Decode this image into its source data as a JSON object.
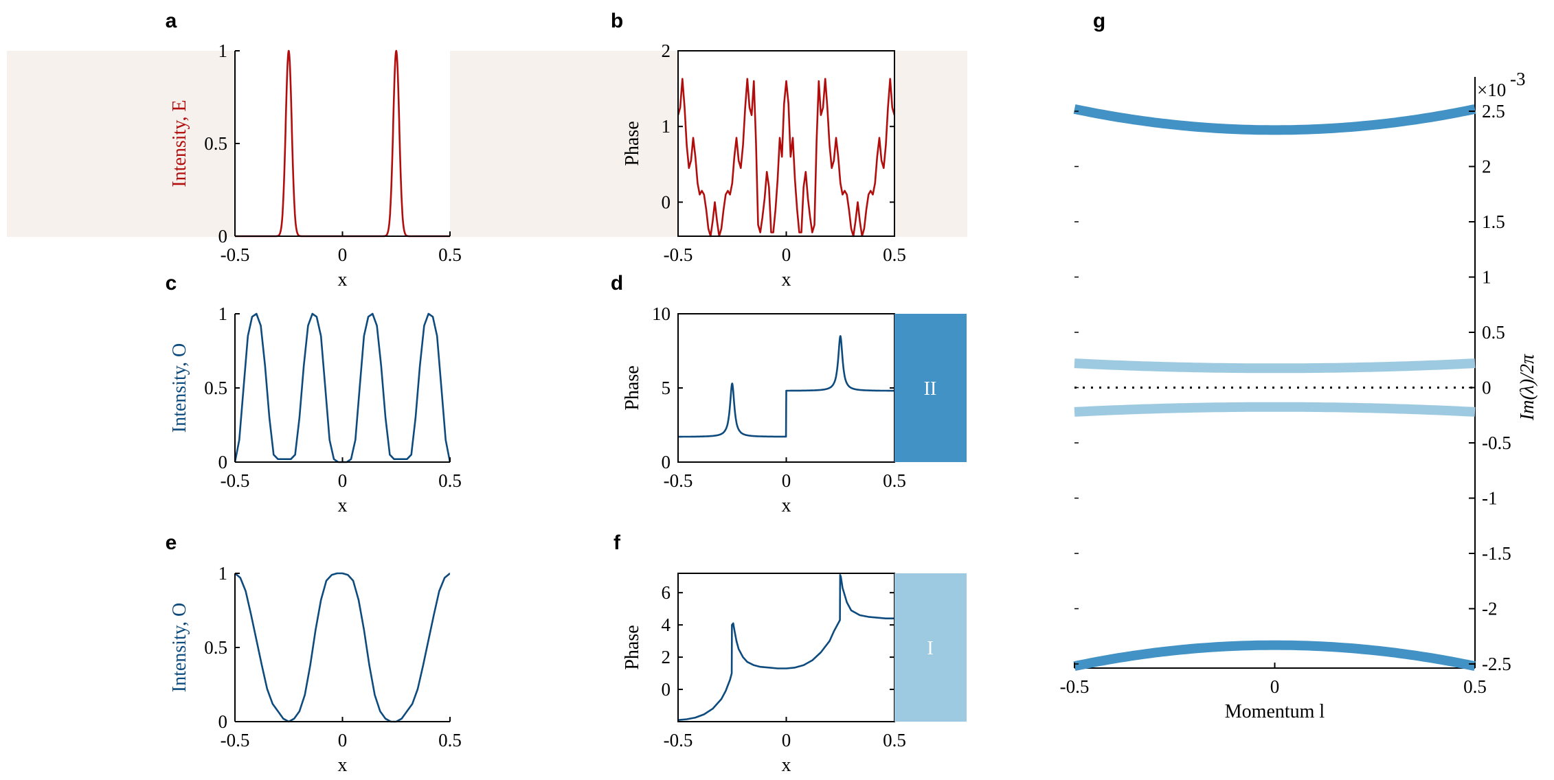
{
  "colors": {
    "red": "#b20d0d",
    "navy": "#0d4a7d",
    "blue": "#4292c6",
    "lightblue": "#9ecae1",
    "beige": "#f6f1ec",
    "black": "#000000"
  },
  "chart_data": [
    {
      "id": "a",
      "panel_label": "a",
      "type": "line",
      "xlabel": "x",
      "ylabel": "Intensity, E",
      "xlim": [
        -0.5,
        0.5
      ],
      "ylim": [
        0,
        1
      ],
      "xticks": [
        -0.5,
        0,
        0.5
      ],
      "xtick_labels": [
        "-0.5",
        "0",
        "0.5"
      ],
      "yticks": [
        0,
        0.5,
        1
      ],
      "ytick_labels": [
        "0",
        "0.5",
        "1"
      ],
      "series": [
        {
          "name": "E intensity",
          "kind": "gauss",
          "centers": [
            -0.25,
            0.25
          ],
          "width": 0.014,
          "amp": 1
        }
      ],
      "background_band": true
    },
    {
      "id": "b",
      "panel_label": "b",
      "type": "line",
      "xlabel": "x",
      "ylabel": "Phase",
      "xlim": [
        -0.5,
        0.5
      ],
      "ylim": [
        -0.45,
        2
      ],
      "xticks": [
        -0.5,
        0,
        0.5
      ],
      "xtick_labels": [
        "-0.5",
        "0",
        "0.5"
      ],
      "yticks": [
        0,
        1,
        2
      ],
      "ytick_labels": [
        "0",
        "1",
        "2"
      ],
      "series": [
        {
          "name": "E phase",
          "kind": "points",
          "x": [
            -0.5,
            -0.49,
            -0.48,
            -0.47,
            -0.46,
            -0.45,
            -0.44,
            -0.43,
            -0.42,
            -0.41,
            -0.4,
            -0.39,
            -0.38,
            -0.37,
            -0.36,
            -0.35,
            -0.34,
            -0.33,
            -0.32,
            -0.31,
            -0.3,
            -0.29,
            -0.28,
            -0.27,
            -0.26,
            -0.25,
            -0.24,
            -0.23,
            -0.22,
            -0.21,
            -0.2,
            -0.19,
            -0.18,
            -0.17,
            -0.16,
            -0.15,
            -0.14,
            -0.13,
            -0.12,
            -0.11,
            -0.1,
            -0.09,
            -0.08,
            -0.07,
            -0.06,
            -0.05,
            -0.04,
            -0.03,
            -0.02,
            -0.01,
            0,
            0.01,
            0.02,
            0.03,
            0.04,
            0.05,
            0.06,
            0.07,
            0.08,
            0.09,
            0.1,
            0.11,
            0.12,
            0.13,
            0.14,
            0.15,
            0.16,
            0.17,
            0.18,
            0.19,
            0.2,
            0.21,
            0.22,
            0.23,
            0.24,
            0.25,
            0.26,
            0.27,
            0.28,
            0.29,
            0.3,
            0.31,
            0.32,
            0.33,
            0.34,
            0.35,
            0.36,
            0.37,
            0.38,
            0.39,
            0.4,
            0.41,
            0.42,
            0.43,
            0.44,
            0.45,
            0.46,
            0.47,
            0.48,
            0.49,
            0.5
          ],
          "y": [
            1.15,
            1.25,
            1.63,
            1.25,
            0.75,
            0.45,
            0.55,
            0.85,
            0.6,
            0.25,
            0.1,
            0.15,
            0.1,
            -0.1,
            -0.35,
            -0.45,
            -0.25,
            0.0,
            -0.25,
            -0.45,
            -0.35,
            -0.1,
            0.1,
            0.15,
            0.1,
            0.25,
            0.6,
            0.85,
            0.55,
            0.45,
            0.75,
            1.25,
            1.63,
            1.25,
            1.15,
            1.6,
            0.8,
            -0.3,
            -0.4,
            -0.2,
            0.05,
            0.4,
            0.2,
            -0.4,
            -0.4,
            -0.1,
            0.3,
            0.85,
            0.6,
            1.3,
            1.6,
            1.3,
            0.6,
            0.85,
            0.3,
            -0.1,
            -0.4,
            -0.4,
            0.2,
            0.4,
            0.05,
            -0.2,
            -0.4,
            -0.3,
            0.8,
            1.6,
            1.15,
            1.25,
            1.63,
            1.25,
            0.75,
            0.45,
            0.55,
            0.85,
            0.6,
            0.25,
            0.1,
            0.15,
            0.1,
            -0.1,
            -0.35,
            -0.45,
            -0.25,
            0.0,
            -0.25,
            -0.45,
            -0.35,
            -0.1,
            0.1,
            0.15,
            0.1,
            0.25,
            0.6,
            0.85,
            0.55,
            0.45,
            0.75,
            1.25,
            1.63,
            1.25,
            1.15
          ]
        }
      ],
      "background_band": true
    },
    {
      "id": "c",
      "panel_label": "c",
      "type": "line",
      "xlabel": "x",
      "ylabel": "Intensity, O",
      "xlim": [
        -0.5,
        0.5
      ],
      "ylim": [
        0,
        1
      ],
      "xticks": [
        -0.5,
        0,
        0.5
      ],
      "xtick_labels": [
        "-0.5",
        "0",
        "0.5"
      ],
      "yticks": [
        0,
        0.5,
        1
      ],
      "ytick_labels": [
        "0",
        "0.5",
        "1"
      ],
      "series": [
        {
          "name": "O intensity",
          "kind": "points",
          "x": [
            -0.5,
            -0.48,
            -0.46,
            -0.44,
            -0.42,
            -0.4,
            -0.38,
            -0.36,
            -0.34,
            -0.32,
            -0.3,
            -0.28,
            -0.26,
            -0.24,
            -0.22,
            -0.2,
            -0.18,
            -0.16,
            -0.14,
            -0.12,
            -0.1,
            -0.08,
            -0.06,
            -0.04,
            -0.02,
            0,
            0.02,
            0.04,
            0.06,
            0.08,
            0.1,
            0.12,
            0.14,
            0.16,
            0.18,
            0.2,
            0.22,
            0.24,
            0.26,
            0.28,
            0.3,
            0.32,
            0.34,
            0.36,
            0.38,
            0.4,
            0.42,
            0.44,
            0.46,
            0.48,
            0.5
          ],
          "y": [
            0.0,
            0.15,
            0.5,
            0.85,
            0.98,
            1.0,
            0.92,
            0.65,
            0.3,
            0.05,
            0.02,
            0.02,
            0.02,
            0.02,
            0.05,
            0.3,
            0.65,
            0.92,
            1.0,
            0.98,
            0.85,
            0.5,
            0.15,
            0.02,
            0.0,
            0.0,
            0.0,
            0.02,
            0.15,
            0.5,
            0.85,
            0.98,
            1.0,
            0.92,
            0.65,
            0.3,
            0.05,
            0.02,
            0.02,
            0.02,
            0.02,
            0.05,
            0.3,
            0.65,
            0.92,
            1.0,
            0.98,
            0.85,
            0.5,
            0.15,
            0.0
          ]
        }
      ],
      "background_band": false
    },
    {
      "id": "d",
      "panel_label": "d",
      "type": "line",
      "xlabel": "x",
      "ylabel": "Phase",
      "xlim": [
        -0.5,
        0.5
      ],
      "ylim": [
        0,
        10
      ],
      "xticks": [
        -0.5,
        0,
        0.5
      ],
      "xtick_labels": [
        "-0.5",
        "0",
        "0.5"
      ],
      "yticks": [
        0,
        5,
        10
      ],
      "ytick_labels": [
        "0",
        "5",
        "10"
      ],
      "series": [
        {
          "name": "O phase",
          "kind": "piecewise_peak",
          "segments": [
            {
              "x0": -0.5,
              "x1": 0.0,
              "base0": 1.7,
              "base1": 1.7
            },
            {
              "x0": 0.0,
              "x1": 0.5,
              "base0": 4.8,
              "base1": 4.8
            }
          ],
          "peaks": [
            {
              "c": -0.25,
              "h": 3.6,
              "w": 0.012
            },
            {
              "c": 0.25,
              "h": 3.7,
              "w": 0.012
            }
          ]
        }
      ],
      "side_block": {
        "label": "II",
        "color_key": "blue"
      }
    },
    {
      "id": "e",
      "panel_label": "e",
      "type": "line",
      "xlabel": "x",
      "ylabel": "Intensity, O",
      "xlim": [
        -0.5,
        0.5
      ],
      "ylim": [
        0,
        1
      ],
      "xticks": [
        -0.5,
        0,
        0.5
      ],
      "xtick_labels": [
        "-0.5",
        "0",
        "0.5"
      ],
      "yticks": [
        0,
        0.5,
        1
      ],
      "ytick_labels": [
        "0",
        "0.5",
        "1"
      ],
      "series": [
        {
          "name": "O intensity",
          "kind": "points",
          "x": [
            -0.5,
            -0.475,
            -0.45,
            -0.425,
            -0.4,
            -0.375,
            -0.35,
            -0.325,
            -0.3,
            -0.275,
            -0.25,
            -0.225,
            -0.2,
            -0.175,
            -0.15,
            -0.125,
            -0.1,
            -0.075,
            -0.05,
            -0.025,
            0,
            0.025,
            0.05,
            0.075,
            0.1,
            0.125,
            0.15,
            0.175,
            0.2,
            0.225,
            0.25,
            0.275,
            0.3,
            0.325,
            0.35,
            0.375,
            0.4,
            0.425,
            0.45,
            0.475,
            0.5
          ],
          "y": [
            1.0,
            0.97,
            0.88,
            0.72,
            0.55,
            0.38,
            0.22,
            0.12,
            0.07,
            0.02,
            0.0,
            0.02,
            0.07,
            0.18,
            0.38,
            0.62,
            0.82,
            0.95,
            0.99,
            1.0,
            1.0,
            0.99,
            0.95,
            0.82,
            0.62,
            0.38,
            0.18,
            0.07,
            0.02,
            0.0,
            0.0,
            0.02,
            0.07,
            0.12,
            0.22,
            0.38,
            0.55,
            0.72,
            0.88,
            0.97,
            1.0
          ]
        }
      ],
      "background_band": false
    },
    {
      "id": "f",
      "panel_label": "f",
      "type": "line",
      "xlabel": "x",
      "ylabel": "Phase",
      "xlim": [
        -0.5,
        0.5
      ],
      "ylim": [
        -2,
        7.2
      ],
      "xticks": [
        -0.5,
        0,
        0.5
      ],
      "xtick_labels": [
        "-0.5",
        "0",
        "0.5"
      ],
      "yticks": [
        0,
        2,
        4,
        6
      ],
      "ytick_labels": [
        "0",
        "2",
        "4",
        "6"
      ],
      "series": [
        {
          "name": "O phase",
          "kind": "points",
          "x": [
            -0.5,
            -0.46,
            -0.42,
            -0.38,
            -0.34,
            -0.3,
            -0.28,
            -0.26,
            -0.252,
            -0.251,
            -0.245,
            -0.24,
            -0.23,
            -0.22,
            -0.2,
            -0.18,
            -0.15,
            -0.12,
            -0.08,
            -0.04,
            0,
            0.04,
            0.08,
            0.12,
            0.16,
            0.2,
            0.22,
            0.24,
            0.248,
            0.249,
            0.252,
            0.26,
            0.28,
            0.3,
            0.34,
            0.38,
            0.42,
            0.46,
            0.5
          ],
          "y": [
            -1.9,
            -1.85,
            -1.75,
            -1.55,
            -1.2,
            -0.6,
            -0.1,
            0.6,
            1.0,
            4.0,
            4.1,
            3.7,
            3.0,
            2.5,
            2.0,
            1.7,
            1.5,
            1.4,
            1.35,
            1.3,
            1.3,
            1.35,
            1.5,
            1.8,
            2.3,
            3.0,
            3.6,
            4.1,
            4.3,
            7.1,
            7.0,
            6.3,
            5.4,
            4.9,
            4.6,
            4.5,
            4.45,
            4.4,
            4.4
          ]
        }
      ],
      "side_block": {
        "label": "I",
        "color_key": "lightblue"
      }
    },
    {
      "id": "g",
      "panel_label": "g",
      "type": "line",
      "xlabel": "Momentum l",
      "ylabel": "Im(λ)/2π",
      "y_exponent": "×10-3",
      "xlim": [
        -0.5,
        0.5
      ],
      "ylim": [
        -2.55,
        2.6
      ],
      "xticks": [
        -0.5,
        0,
        0.5
      ],
      "xtick_labels": [
        "-0.5",
        "0",
        "0.5"
      ],
      "yticks": [
        -2.5,
        -2,
        -1.5,
        -1,
        -0.5,
        0,
        0.5,
        1,
        1.5,
        2,
        2.5
      ],
      "ytick_labels": [
        "-2.5",
        "-2",
        "-1.5",
        "-1",
        "-0.5",
        "0",
        "0.5",
        "1",
        "1.5",
        "2",
        "2.5"
      ],
      "series": [
        {
          "name": "upper band II",
          "x": [
            -0.5,
            -0.25,
            0,
            0.25,
            0.5
          ],
          "y": [
            2.52,
            2.38,
            2.33,
            2.38,
            2.52
          ],
          "color_key": "blue"
        },
        {
          "name": "lower band II",
          "x": [
            -0.5,
            -0.25,
            0,
            0.25,
            0.5
          ],
          "y": [
            -2.52,
            -2.38,
            -2.33,
            -2.38,
            -2.52
          ],
          "color_key": "blue"
        },
        {
          "name": "upper band I",
          "x": [
            -0.5,
            -0.25,
            0,
            0.25,
            0.5
          ],
          "y": [
            0.22,
            0.185,
            0.175,
            0.185,
            0.22
          ],
          "color_key": "lightblue"
        },
        {
          "name": "lower band I",
          "x": [
            -0.5,
            -0.25,
            0,
            0.25,
            0.5
          ],
          "y": [
            -0.22,
            -0.185,
            -0.175,
            -0.185,
            -0.22
          ],
          "color_key": "lightblue"
        },
        {
          "name": "zero line",
          "x": [
            -0.5,
            0.5
          ],
          "y": [
            0,
            0
          ],
          "color_key": "black",
          "dotted": true
        }
      ]
    }
  ]
}
